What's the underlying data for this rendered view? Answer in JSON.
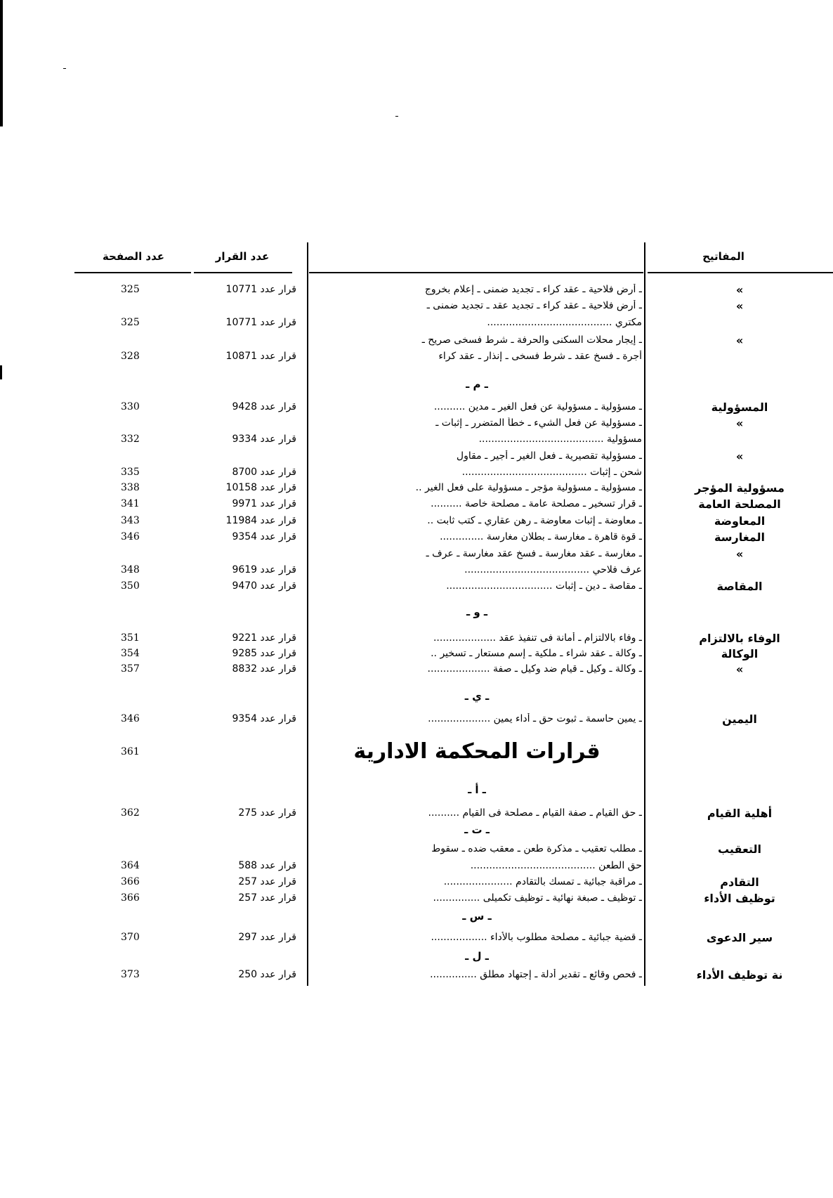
{
  "header": {
    "keywords": "المفاتيح",
    "decision_number": "عدد القرار",
    "page_number": "عدد الصفحة"
  },
  "rows": [
    {
      "kw": "»",
      "text": "ـ أرض فلاحية ـ عقد كراء ـ تجديد ضمنى ـ إعلام بخروج",
      "dec": "قرار عدد 10771",
      "page": "325"
    },
    {
      "kw": "»",
      "text": "ـ أرض فلاحية ـ عقد كراء ـ تجديد عقد ـ تجديد ضمنى ـ",
      "dec": "",
      "page": ""
    },
    {
      "kw": "",
      "text": "مكتري ........................................",
      "dec": "قرار عدد 10771",
      "page": "325"
    },
    {
      "kw": "»",
      "text": "ـ إيجار محلات السكنى والحرفة ـ شرط فسخى صريح ـ",
      "dec": "",
      "page": ""
    },
    {
      "kw": "",
      "text": "أجرة ـ فسخ عقد ـ شرط فسخى ـ إنذار ـ عقد كراء",
      "dec": "قرار عدد 10871",
      "page": "328"
    },
    {
      "section": "ـ م ـ"
    },
    {
      "kw": "المسؤولية",
      "text": "ـ مسؤولية ـ مسؤولية عن فعل الغير ـ مدين ..........",
      "dec": "قرار عدد 9428",
      "page": "330"
    },
    {
      "kw": "»",
      "text": "ـ مسؤولية عن فعل الشيء ـ خطأ المتضرر ـ إثبات ـ",
      "dec": "",
      "page": ""
    },
    {
      "kw": "",
      "text": "مسؤولية ........................................",
      "dec": "قرار عدد 9334",
      "page": "332"
    },
    {
      "kw": "»",
      "text": "ـ مسؤولية تقصيرية ـ فعل الغير ـ أجير ـ مقاول",
      "dec": "",
      "page": ""
    },
    {
      "kw": "",
      "text": "شحن ـ إثبات ........................................",
      "dec": "قرار عدد 8700",
      "page": "335"
    },
    {
      "kw": "مسؤولية المؤجر",
      "text": "ـ مسؤولية ـ مسؤولية مؤجر ـ مسؤولية على فعل الغير ..",
      "dec": "قرار عدد 10158",
      "page": "338"
    },
    {
      "kw": "المصلحة العامة",
      "text": "ـ قرار تسخير ـ مصلحة عامة ـ مصلحة خاصة ..........",
      "dec": "قرار عدد 9971",
      "page": "341"
    },
    {
      "kw": "المعاوضة",
      "text": "ـ معاوضة ـ إثبات معاوضة ـ رهن عقاري ـ كتب ثابت ..",
      "dec": "قرار عدد 11984",
      "page": "343"
    },
    {
      "kw": "المغارسة",
      "text": "ـ قوة قاهرة ـ مغارسة ـ بطلان مغارسة ..............",
      "dec": "قرار عدد 9354",
      "page": "346"
    },
    {
      "kw": "»",
      "text": "ـ مغارسة ـ عقد مغارسة ـ فسخ عقد مغارسة ـ عرف ـ",
      "dec": "",
      "page": ""
    },
    {
      "kw": "",
      "text": "عرف فلاحي ........................................",
      "dec": "قرار عدد 9619",
      "page": "348"
    },
    {
      "kw": "المقاصة",
      "text": "ـ مقاصة ـ دين ـ إثبات ..................................",
      "dec": "قرار عدد 9470",
      "page": "350"
    },
    {
      "section": "ـ و ـ"
    },
    {
      "kw": "الوفاء بالالتزام",
      "text": "ـ وفاء بالالتزام ـ أمانة فى تنفيذ عقد ....................",
      "dec": "قرار عدد 9221",
      "page": "351"
    },
    {
      "kw": "الوكالة",
      "text": "ـ وكالة ـ عقد شراء ـ ملكية ـ إسم مستعار ـ تسخير ..",
      "dec": "قرار عدد 9285",
      "page": "354"
    },
    {
      "kw": "»",
      "text": "ـ وكالة ـ وكيل ـ قيام ضد وكيل ـ صفة ....................",
      "dec": "قرار عدد 8832",
      "page": "357"
    },
    {
      "section": "ـ ي ـ"
    },
    {
      "kw": "اليمين",
      "text": "ـ يمين حاسمة ـ ثبوت حق ـ أداء يمين ....................",
      "dec": "قرار عدد 9354",
      "page": "346"
    },
    {
      "title": "قرارات المحكمة الادارية",
      "page": "361"
    },
    {
      "section": "ـ أ ـ"
    },
    {
      "kw": "أهلية القيام",
      "text": "ـ حق القيام ـ صفة القيام ـ مصلحة فى القيام ..........",
      "dec": "قرار عدد 275",
      "page": "362"
    },
    {
      "section": "ـ ت ـ"
    },
    {
      "kw": "التعقيب",
      "text": "ـ مطلب تعقيب ـ مذكرة طعن ـ معقب ضده ـ سقوط",
      "dec": "",
      "page": ""
    },
    {
      "kw": "",
      "text": "حق الطعن ........................................",
      "dec": "قرار عدد 588",
      "page": "364"
    },
    {
      "kw": "التقادم",
      "text": "ـ مراقبة جبائية ـ تمسك بالتقادم ......................",
      "dec": "قرار عدد 257",
      "page": "366"
    },
    {
      "kw": "توظيف الأداء",
      "text": "ـ توظيف ـ صبغة نهائية ـ توظيف تكميلى ...............",
      "dec": "قرار عدد 257",
      "page": "366"
    },
    {
      "section": "ـ س ـ"
    },
    {
      "kw": "سير الدعوى",
      "text": "ـ قضية جبائية ـ مصلحة مطلوب بالأداء ..................",
      "dec": "قرار عدد 297",
      "page": "370"
    },
    {
      "section": "ـ ل ـ"
    },
    {
      "kw": "نة توظيف الأداء",
      "text": "ـ فحص وقائع ـ تقدير أدلة ـ إجتهاد مطلق ...............",
      "dec": "قرار عدد 250",
      "page": "373"
    }
  ]
}
